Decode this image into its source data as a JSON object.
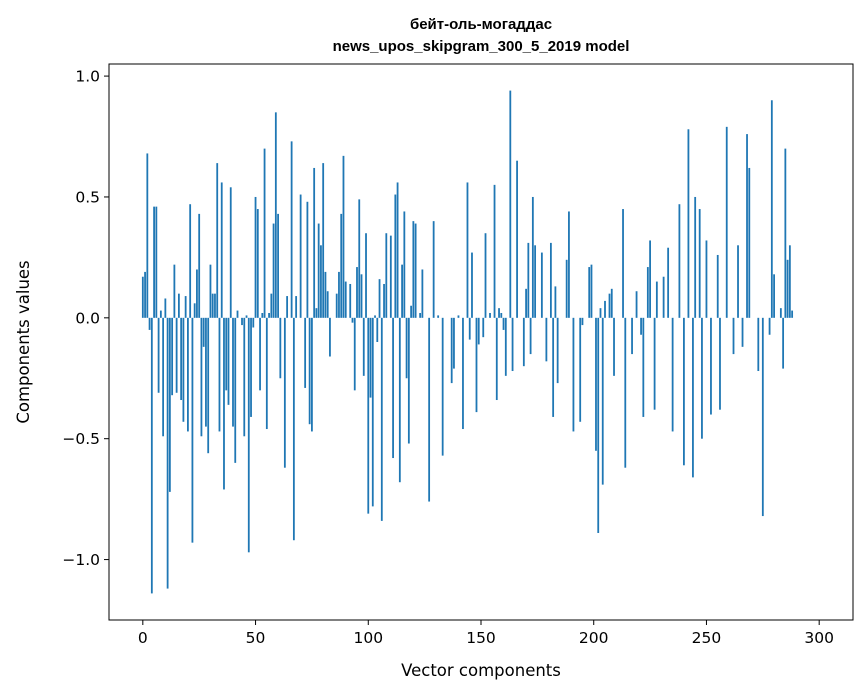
{
  "chart_data": {
    "type": "bar",
    "title": "бейт-оль-могаддас",
    "subtitle": "news_upos_skipgram_300_5_2019 model",
    "xlabel": "Vector components",
    "ylabel": "Components values",
    "xlim": [
      -15,
      315
    ],
    "ylim": [
      -1.25,
      1.05
    ],
    "xticks": [
      0,
      50,
      100,
      150,
      200,
      250,
      300
    ],
    "xtick_labels": [
      "0",
      "50",
      "100",
      "150",
      "200",
      "250",
      "300"
    ],
    "yticks": [
      -1.0,
      -0.5,
      0.0,
      0.5,
      1.0
    ],
    "ytick_labels": [
      "−1.0",
      "−0.5",
      "0.0",
      "0.5",
      "1.0"
    ],
    "bar_color": "#1f77b4",
    "values": [
      0.17,
      0.19,
      0.68,
      -0.05,
      -1.14,
      0.46,
      0.46,
      -0.31,
      0.03,
      -0.49,
      0.08,
      -1.12,
      -0.72,
      -0.32,
      0.22,
      -0.31,
      0.1,
      -0.34,
      -0.43,
      0.09,
      -0.47,
      0.47,
      -0.93,
      0.06,
      0.2,
      0.43,
      -0.49,
      -0.12,
      -0.45,
      -0.56,
      0.22,
      0.1,
      0.1,
      0.64,
      -0.47,
      0.56,
      -0.71,
      -0.3,
      -0.36,
      0.54,
      -0.45,
      -0.6,
      0.03,
      0.0,
      -0.03,
      -0.49,
      0.01,
      -0.97,
      -0.41,
      -0.04,
      0.5,
      0.45,
      -0.3,
      0.02,
      0.7,
      -0.46,
      0.02,
      0.1,
      0.39,
      0.85,
      0.43,
      -0.25,
      0.0,
      -0.62,
      0.09,
      0.0,
      0.73,
      -0.92,
      0.09,
      0.0,
      0.51,
      0.0,
      -0.29,
      0.48,
      -0.44,
      -0.47,
      0.62,
      0.04,
      0.39,
      0.3,
      0.64,
      0.19,
      0.11,
      -0.16,
      0.0,
      0.0,
      0.1,
      0.19,
      0.43,
      0.67,
      0.15,
      0.0,
      0.14,
      -0.02,
      -0.3,
      0.21,
      0.49,
      0.18,
      -0.24,
      0.35,
      -0.81,
      -0.33,
      -0.78,
      0.01,
      -0.1,
      0.16,
      -0.84,
      0.14,
      0.35,
      0.0,
      0.34,
      -0.58,
      0.51,
      0.56,
      -0.68,
      0.22,
      0.44,
      -0.25,
      -0.52,
      0.05,
      0.4,
      0.39,
      0.0,
      0.02,
      0.2,
      0.0,
      0.0,
      -0.76,
      0.0,
      0.4,
      0.0,
      0.01,
      0.0,
      -0.57,
      0.0,
      0.0,
      0.0,
      -0.27,
      -0.21,
      0.0,
      0.01,
      0.0,
      -0.46,
      0.0,
      0.56,
      -0.09,
      0.27,
      0.0,
      -0.39,
      -0.11,
      0.0,
      -0.08,
      0.35,
      0.0,
      0.02,
      0.0,
      0.55,
      -0.34,
      0.04,
      0.02,
      -0.05,
      -0.24,
      0.0,
      0.94,
      -0.22,
      0.0,
      0.65,
      0.0,
      0.0,
      -0.2,
      0.12,
      0.31,
      -0.15,
      0.5,
      0.3,
      0.0,
      0.0,
      0.27,
      0.0,
      -0.18,
      0.0,
      0.31,
      -0.41,
      0.13,
      -0.27,
      0.0,
      0.0,
      0.0,
      0.24,
      0.44,
      0.0,
      -0.47,
      0.0,
      0.0,
      -0.43,
      -0.03,
      0.0,
      0.0,
      0.21,
      0.22,
      0.0,
      -0.55,
      -0.89,
      0.04,
      -0.69,
      0.07,
      0.0,
      0.1,
      0.12,
      -0.24,
      0.0,
      0.0,
      0.0,
      0.45,
      -0.62,
      0.0,
      0.0,
      -0.15,
      0.0,
      0.11,
      0.0,
      -0.07,
      -0.41,
      0.0,
      0.21,
      0.32,
      0.0,
      -0.38,
      0.15,
      0.0,
      0.0,
      0.17,
      0.0,
      0.29,
      0.0,
      -0.47,
      0.0,
      0.0,
      0.47,
      0.0,
      -0.61,
      0.0,
      0.78,
      0.0,
      -0.66,
      0.5,
      0.0,
      0.45,
      -0.5,
      0.0,
      0.32,
      0.0,
      -0.4,
      0.0,
      0.0,
      0.26,
      -0.38,
      0.0,
      0.0,
      0.79,
      0.0,
      0.0,
      -0.15,
      0.0,
      0.3,
      0.0,
      -0.12,
      0.0,
      0.76,
      0.62,
      0.0,
      0.0,
      0.0,
      -0.22,
      0.0,
      -0.82,
      0.0,
      0.0,
      -0.07,
      0.9,
      0.18,
      0.0,
      0.0,
      0.04,
      -0.21,
      0.7,
      0.24,
      0.3,
      0.03
    ]
  }
}
